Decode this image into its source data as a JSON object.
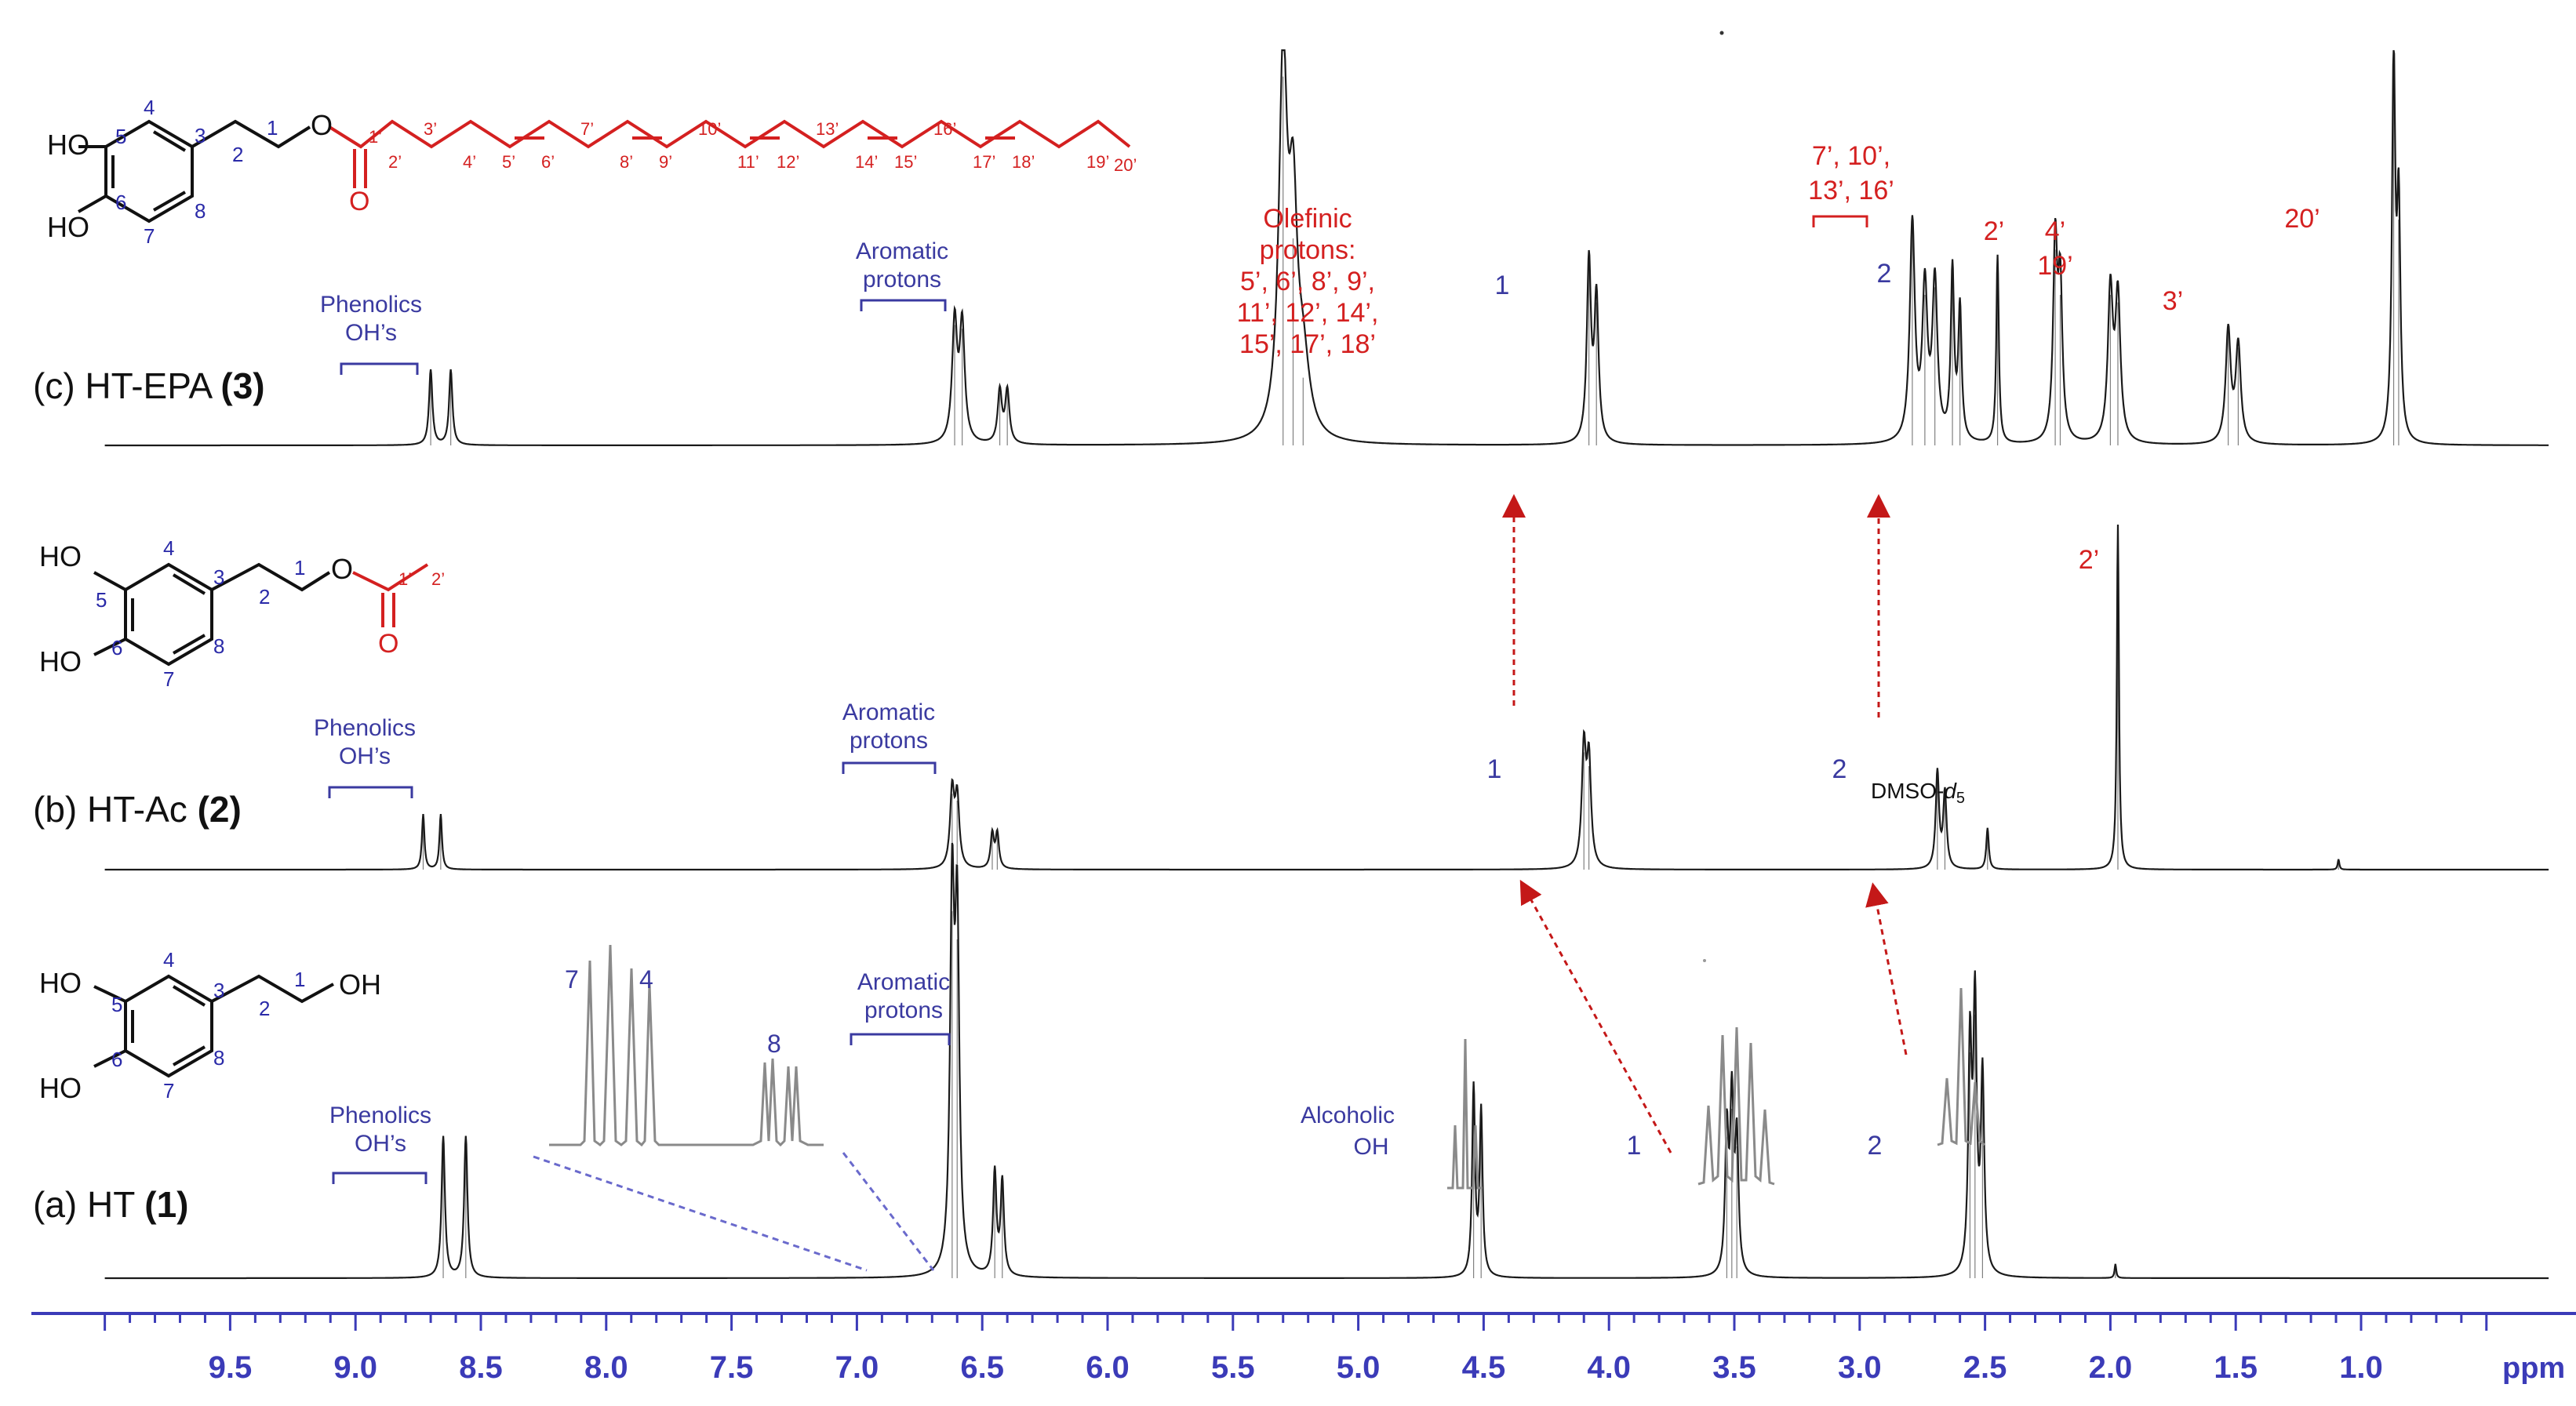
{
  "chart_data": {
    "type": "line",
    "title": "",
    "xlabel": "ppm",
    "ylabel": "",
    "grid": false,
    "xlim": [
      10.0,
      0.3
    ],
    "x_reversed": true,
    "ticks": [
      "9.5",
      "9.0",
      "8.5",
      "8.0",
      "7.5",
      "7.0",
      "6.5",
      "6.0",
      "5.5",
      "5.0",
      "4.5",
      "4.0",
      "3.5",
      "3.0",
      "2.5",
      "2.0",
      "1.5",
      "1.0"
    ],
    "series": [
      {
        "name": "(c) HT-EPA (3)",
        "label": {
          "prefix": "(c) HT-EPA ",
          "bold": "(3)"
        },
        "peaks": [
          {
            "ppm": 8.7,
            "height": 0.2,
            "width": 0.008
          },
          {
            "ppm": 8.62,
            "height": 0.2,
            "width": 0.008
          },
          {
            "ppm": 6.61,
            "height": 0.32,
            "width": 0.012
          },
          {
            "ppm": 6.58,
            "height": 0.31,
            "width": 0.012
          },
          {
            "ppm": 6.43,
            "height": 0.14,
            "width": 0.01
          },
          {
            "ppm": 6.4,
            "height": 0.14,
            "width": 0.01
          },
          {
            "ppm": 5.3,
            "height": 0.98,
            "width": 0.02
          },
          {
            "ppm": 5.26,
            "height": 0.55,
            "width": 0.02
          },
          {
            "ppm": 5.22,
            "height": 0.18,
            "width": 0.03
          },
          {
            "ppm": 4.08,
            "height": 0.48,
            "width": 0.01
          },
          {
            "ppm": 4.05,
            "height": 0.38,
            "width": 0.01
          },
          {
            "ppm": 2.79,
            "height": 0.58,
            "width": 0.012
          },
          {
            "ppm": 2.74,
            "height": 0.4,
            "width": 0.012
          },
          {
            "ppm": 2.7,
            "height": 0.42,
            "width": 0.012
          },
          {
            "ppm": 2.63,
            "height": 0.45,
            "width": 0.008
          },
          {
            "ppm": 2.6,
            "height": 0.35,
            "width": 0.008
          },
          {
            "ppm": 2.45,
            "height": 0.5,
            "width": 0.006
          },
          {
            "ppm": 2.22,
            "height": 0.52,
            "width": 0.01
          },
          {
            "ppm": 2.2,
            "height": 0.4,
            "width": 0.01
          },
          {
            "ppm": 2.0,
            "height": 0.4,
            "width": 0.012
          },
          {
            "ppm": 1.97,
            "height": 0.38,
            "width": 0.012
          },
          {
            "ppm": 1.53,
            "height": 0.3,
            "width": 0.012
          },
          {
            "ppm": 1.49,
            "height": 0.26,
            "width": 0.012
          },
          {
            "ppm": 0.87,
            "height": 1.0,
            "width": 0.008
          },
          {
            "ppm": 0.85,
            "height": 0.6,
            "width": 0.008
          }
        ]
      },
      {
        "name": "(b) HT-Ac (2)",
        "label": {
          "prefix": "(b) HT-Ac ",
          "bold": "(2)"
        },
        "peaks": [
          {
            "ppm": 8.73,
            "height": 0.16,
            "width": 0.006
          },
          {
            "ppm": 8.66,
            "height": 0.16,
            "width": 0.006
          },
          {
            "ppm": 6.62,
            "height": 0.22,
            "width": 0.01
          },
          {
            "ppm": 6.6,
            "height": 0.2,
            "width": 0.01
          },
          {
            "ppm": 6.46,
            "height": 0.1,
            "width": 0.008
          },
          {
            "ppm": 6.44,
            "height": 0.1,
            "width": 0.008
          },
          {
            "ppm": 4.1,
            "height": 0.34,
            "width": 0.01
          },
          {
            "ppm": 4.08,
            "height": 0.3,
            "width": 0.01
          },
          {
            "ppm": 2.69,
            "height": 0.28,
            "width": 0.008
          },
          {
            "ppm": 2.66,
            "height": 0.22,
            "width": 0.008
          },
          {
            "ppm": 2.49,
            "height": 0.12,
            "width": 0.006
          },
          {
            "ppm": 1.97,
            "height": 1.0,
            "width": 0.005
          },
          {
            "ppm": 1.09,
            "height": 0.03,
            "width": 0.004
          }
        ]
      },
      {
        "name": "(a) HT (1)",
        "label": {
          "prefix": "(a) HT ",
          "bold": "(1)"
        },
        "peaks": [
          {
            "ppm": 8.65,
            "height": 0.3,
            "width": 0.008
          },
          {
            "ppm": 8.56,
            "height": 0.3,
            "width": 0.008
          },
          {
            "ppm": 6.62,
            "height": 0.78,
            "width": 0.01
          },
          {
            "ppm": 6.6,
            "height": 0.72,
            "width": 0.01
          },
          {
            "ppm": 6.45,
            "height": 0.22,
            "width": 0.008
          },
          {
            "ppm": 6.42,
            "height": 0.2,
            "width": 0.008
          },
          {
            "ppm": 4.54,
            "height": 0.4,
            "width": 0.007
          },
          {
            "ppm": 4.51,
            "height": 0.35,
            "width": 0.007
          },
          {
            "ppm": 3.53,
            "height": 0.3,
            "width": 0.008
          },
          {
            "ppm": 3.51,
            "height": 0.36,
            "width": 0.008
          },
          {
            "ppm": 3.49,
            "height": 0.28,
            "width": 0.008
          },
          {
            "ppm": 2.56,
            "height": 0.48,
            "width": 0.008
          },
          {
            "ppm": 2.54,
            "height": 0.56,
            "width": 0.008
          },
          {
            "ppm": 2.51,
            "height": 0.42,
            "width": 0.008
          },
          {
            "ppm": 1.98,
            "height": 0.03,
            "width": 0.004
          }
        ]
      }
    ],
    "annotations": {
      "c": {
        "phenolics": [
          "Phenolics",
          "OH’s"
        ],
        "aromatic": [
          "Aromatic",
          "protons"
        ],
        "olefinic": [
          "Olefinic",
          "protons:",
          "5’, 6’, 8’, 9’,",
          "11’, 12’, 14’,",
          "15’, 17’, 18’"
        ],
        "h1": "1",
        "h2": "2",
        "ch2_allylic": [
          "7’, 10’,",
          "13’, 16’"
        ],
        "h2p": "2’",
        "h4p_19p": [
          "4’",
          "19’"
        ],
        "h3p": "3’",
        "h20p": "20’"
      },
      "b": {
        "phenolics": [
          "Phenolics",
          "OH’s"
        ],
        "aromatic": [
          "Aromatic",
          "protons"
        ],
        "h1": "1",
        "h2": "2",
        "dmso_main": "DMSO-",
        "dmso_d": "d",
        "dmso_sub": "5",
        "h2p": "2’"
      },
      "a": {
        "phenolics": [
          "Phenolics",
          "OH’s"
        ],
        "aromatic": [
          "Aromatic",
          "protons"
        ],
        "alcoholic": [
          "Alcoholic",
          "OH"
        ],
        "h1": "1",
        "h2": "2",
        "inset_7": "7",
        "inset_4": "4",
        "inset_8": "8"
      }
    },
    "structures": {
      "c": {
        "ring_labels": [
          "HO",
          "HO",
          "5",
          "6",
          "4",
          "3",
          "7",
          "8"
        ],
        "chain_labels": [
          "2",
          "1",
          "O"
        ],
        "acyl_labels": [
          "1’",
          "O",
          "2’",
          "3’",
          "4’",
          "5’",
          "6’",
          "7’",
          "8’",
          "9’",
          "10’",
          "11’",
          "12’",
          "13’",
          "14’",
          "15’",
          "16’",
          "17’",
          "18’",
          "19’",
          "20’"
        ]
      },
      "b": {
        "ring_labels": [
          "HO",
          "HO",
          "5",
          "6",
          "4",
          "3",
          "7",
          "8"
        ],
        "chain_labels": [
          "2",
          "1",
          "O"
        ],
        "acyl_labels": [
          "1’",
          "O",
          "2’"
        ]
      },
      "a": {
        "ring_labels": [
          "HO",
          "HO",
          "5",
          "6",
          "4",
          "3",
          "7",
          "8"
        ],
        "chain_labels": [
          "2",
          "1",
          "OH"
        ]
      }
    },
    "colors": {
      "spectrum": "#1a1a1a",
      "annotation_blue": "#3a3aa0",
      "annotation_red": "#d42020",
      "axis_blue": "#3b3bb8",
      "inset_gray": "#8a8a8a",
      "dashed_blue": "#6a6acc"
    }
  }
}
